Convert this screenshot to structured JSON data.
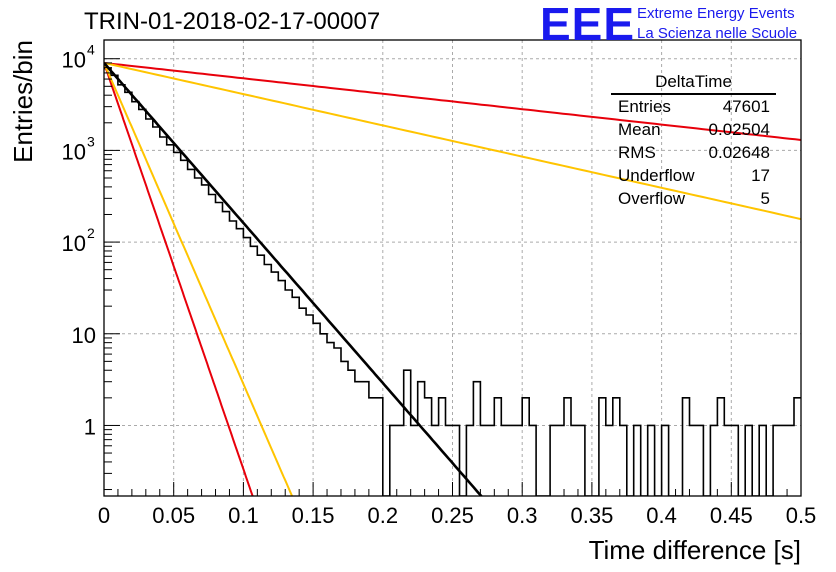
{
  "title": "TRIN-01-2018-02-17-00007",
  "logo": {
    "mark": "EEE",
    "line1": "Extreme Energy Events",
    "line2": "La Scienza nelle Scuole",
    "color": "#1a1aee"
  },
  "stats": {
    "title": "DeltaTime",
    "entries_label": "Entries",
    "entries": "47601",
    "mean_label": "Mean",
    "mean": "0.02504",
    "rms_label": "RMS",
    "rms": "0.02648",
    "underflow_label": "Underflow",
    "underflow": "17",
    "overflow_label": "Overflow",
    "overflow": "5"
  },
  "chart_data": {
    "type": "line",
    "title": "TRIN-01-2018-02-17-00007",
    "xlabel": "Time difference [s]",
    "ylabel": "Entries/bin",
    "xlim": [
      0,
      0.5
    ],
    "ylim": [
      0.17,
      16000
    ],
    "yscale": "log",
    "grid": true,
    "x_ticks": [
      0,
      0.05,
      0.1,
      0.15,
      0.2,
      0.25,
      0.3,
      0.35,
      0.4,
      0.45,
      0.5
    ],
    "x_tick_labels": [
      "0",
      "0.05",
      "0.1",
      "0.15",
      "0.2",
      "0.25",
      "0.3",
      "0.35",
      "0.4",
      "0.45",
      "0.5"
    ],
    "y_ticks": [
      1,
      10,
      100,
      1000,
      10000
    ],
    "y_tick_labels": [
      {
        "base": "1",
        "exp": ""
      },
      {
        "base": "10",
        "exp": ""
      },
      {
        "base": "10",
        "exp": "2"
      },
      {
        "base": "10",
        "exp": "3"
      },
      {
        "base": "10",
        "exp": "4"
      }
    ],
    "histogram": {
      "bin_width": 0.005,
      "color": "#000000",
      "counts": [
        7800,
        6600,
        5200,
        4300,
        3400,
        2800,
        2200,
        1800,
        1400,
        1150,
        950,
        780,
        620,
        500,
        420,
        330,
        270,
        215,
        170,
        140,
        112,
        90,
        72,
        57,
        47,
        38,
        30,
        25,
        19,
        16,
        13,
        10,
        8,
        7,
        5,
        4,
        3,
        3,
        2,
        2,
        0,
        1,
        1,
        4,
        1,
        3,
        2,
        1,
        2,
        1,
        1,
        0,
        1,
        3,
        1,
        1,
        2,
        1,
        1,
        1,
        2,
        1,
        0,
        0,
        1,
        1,
        2,
        1,
        1,
        0,
        0,
        2,
        1,
        2,
        1,
        0,
        1,
        0,
        1,
        0,
        1,
        0,
        0,
        2,
        1,
        1,
        0,
        1,
        2,
        1,
        1,
        0,
        1,
        0,
        1,
        0,
        1,
        1,
        1,
        2
      ]
    },
    "fits": [
      {
        "color": "#000000",
        "A": 9000,
        "tau": 0.02488,
        "x_end": 0.272
      },
      {
        "color": "#ffc400",
        "A": 9000,
        "tau": 0.0124,
        "x_end": 0.138
      },
      {
        "color": "#e8000b",
        "A": 9000,
        "tau": 0.0098,
        "x_end": 0.111
      },
      {
        "color": "#ffc400",
        "A": 9000,
        "tau": 0.1275,
        "x_end": 0.5
      },
      {
        "color": "#e8000b",
        "A": 9000,
        "tau": 0.2583,
        "x_end": 0.5
      }
    ]
  }
}
